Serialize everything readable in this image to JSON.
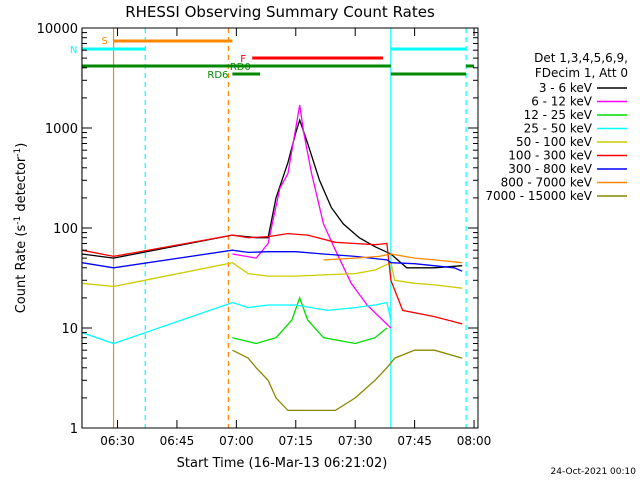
{
  "chart_data": {
    "type": "line",
    "title": "RHESSI Observing Summary Count Rates",
    "xlabel": "Start Time (16-Mar-13 06:21:02)",
    "ylabel_main": "Count Rate (s",
    "ylabel_sup1": "-1",
    "ylabel_mid": " detector",
    "ylabel_sup2": "-1",
    "ylabel_end": ")",
    "y_scale": "log",
    "ylim": [
      1,
      10000
    ],
    "xlim": [
      "06:21:02",
      "08:01"
    ],
    "x_ticks": [
      "06:30",
      "06:45",
      "07:00",
      "07:15",
      "07:30",
      "07:45",
      "08:00"
    ],
    "y_ticks": [
      "1",
      "10",
      "100",
      "1000",
      "10000"
    ],
    "legend_header": [
      "Det 1,3,4,5,6,9,",
      "FDecim 1, Att 0"
    ],
    "footer_date": "24-Oct-2021 00:10",
    "series": [
      {
        "name": "3 - 6 keV",
        "color": "#000000",
        "points": [
          [
            "06:21",
            55
          ],
          [
            "06:29",
            50
          ],
          [
            "06:59",
            85
          ],
          [
            "07:05",
            80
          ],
          [
            "07:08",
            80
          ],
          [
            "07:10",
            200
          ],
          [
            "07:13",
            450
          ],
          [
            "07:15",
            900
          ],
          [
            "07:16",
            1200
          ],
          [
            "07:18",
            700
          ],
          [
            "07:21",
            300
          ],
          [
            "07:24",
            160
          ],
          [
            "07:27",
            110
          ],
          [
            "07:31",
            80
          ],
          [
            "07:35",
            65
          ],
          [
            "07:39",
            55
          ],
          [
            "07:43",
            40
          ],
          [
            "07:50",
            40
          ],
          [
            "07:57",
            42
          ]
        ]
      },
      {
        "name": "6 - 12 keV",
        "color": "#ff00ff",
        "points": [
          [
            "06:59",
            55
          ],
          [
            "07:05",
            50
          ],
          [
            "07:08",
            70
          ],
          [
            "07:11",
            250
          ],
          [
            "07:13",
            350
          ],
          [
            "07:15",
            1000
          ],
          [
            "07:16",
            1700
          ],
          [
            "07:17",
            900
          ],
          [
            "07:19",
            350
          ],
          [
            "07:22",
            110
          ],
          [
            "07:25",
            60
          ],
          [
            "07:29",
            28
          ],
          [
            "07:33",
            17
          ],
          [
            "07:36",
            13
          ],
          [
            "07:39",
            10
          ]
        ]
      },
      {
        "name": "12 - 25 keV",
        "color": "#00dd00",
        "points": [
          [
            "06:59",
            8
          ],
          [
            "07:05",
            7
          ],
          [
            "07:10",
            8
          ],
          [
            "07:14",
            12
          ],
          [
            "07:16",
            20
          ],
          [
            "07:18",
            12
          ],
          [
            "07:22",
            8
          ],
          [
            "07:30",
            7
          ],
          [
            "07:35",
            8
          ],
          [
            "07:38",
            10
          ]
        ]
      },
      {
        "name": "25 - 50 keV",
        "color": "#00ffff",
        "points": [
          [
            "06:21",
            9
          ],
          [
            "06:29",
            7
          ],
          [
            "06:59",
            18
          ],
          [
            "07:03",
            16
          ],
          [
            "07:08",
            17
          ],
          [
            "07:15",
            17
          ],
          [
            "07:23",
            15
          ],
          [
            "07:30",
            16
          ],
          [
            "07:35",
            17
          ],
          [
            "07:38",
            18
          ],
          [
            "07:39",
            12
          ]
        ]
      },
      {
        "name": "50 - 100 keV",
        "color": "#cccc00",
        "points": [
          [
            "06:21",
            28
          ],
          [
            "06:29",
            26
          ],
          [
            "06:59",
            45
          ],
          [
            "07:03",
            35
          ],
          [
            "07:08",
            33
          ],
          [
            "07:15",
            33
          ],
          [
            "07:22",
            34
          ],
          [
            "07:30",
            35
          ],
          [
            "07:35",
            38
          ],
          [
            "07:39",
            45
          ],
          [
            "07:40",
            30
          ],
          [
            "07:45",
            28
          ],
          [
            "07:50",
            27
          ],
          [
            "07:57",
            25
          ]
        ]
      },
      {
        "name": "100 - 300 keV",
        "color": "#ff0000",
        "points": [
          [
            "06:21",
            60
          ],
          [
            "06:29",
            52
          ],
          [
            "06:59",
            85
          ],
          [
            "07:03",
            80
          ],
          [
            "07:08",
            82
          ],
          [
            "07:13",
            88
          ],
          [
            "07:18",
            85
          ],
          [
            "07:25",
            72
          ],
          [
            "07:30",
            70
          ],
          [
            "07:35",
            68
          ],
          [
            "07:38",
            70
          ],
          [
            "07:39",
            30
          ],
          [
            "07:42",
            15
          ],
          [
            "07:50",
            13
          ],
          [
            "07:57",
            11
          ]
        ]
      },
      {
        "name": "300 - 800 keV",
        "color": "#0000ff",
        "points": [
          [
            "06:21",
            45
          ],
          [
            "06:29",
            40
          ],
          [
            "06:59",
            60
          ],
          [
            "07:03",
            57
          ],
          [
            "07:08",
            58
          ],
          [
            "07:15",
            58
          ],
          [
            "07:22",
            55
          ],
          [
            "07:30",
            52
          ],
          [
            "07:38",
            48
          ],
          [
            "07:39",
            45
          ],
          [
            "07:45",
            44
          ],
          [
            "07:55",
            40
          ],
          [
            "07:57",
            37
          ]
        ]
      },
      {
        "name": "800 - 7000 keV",
        "color": "#ff8800",
        "points": [
          [
            "07:22",
            48
          ],
          [
            "07:30",
            50
          ],
          [
            "07:36",
            52
          ],
          [
            "07:39",
            55
          ],
          [
            "07:45",
            50
          ],
          [
            "07:50",
            48
          ],
          [
            "07:57",
            45
          ]
        ]
      },
      {
        "name": "7000 - 15000 keV",
        "color": "#888800",
        "points": [
          [
            "06:59",
            6
          ],
          [
            "07:03",
            5
          ],
          [
            "07:05",
            4
          ],
          [
            "07:08",
            3
          ],
          [
            "07:10",
            2
          ],
          [
            "07:13",
            1.5
          ],
          [
            "07:20",
            1.5
          ],
          [
            "07:25",
            1.5
          ],
          [
            "07:30",
            2
          ],
          [
            "07:35",
            3
          ],
          [
            "07:38",
            4
          ],
          [
            "07:40",
            5
          ],
          [
            "07:45",
            6
          ],
          [
            "07:50",
            6
          ],
          [
            "07:57",
            5
          ]
        ]
      }
    ],
    "state_bars": [
      {
        "label": "S",
        "color": "#ff8800",
        "start": "06:29",
        "end": "06:59",
        "level": 0
      },
      {
        "label": "N",
        "color": "#00ffff",
        "start": "06:21",
        "end": "06:37",
        "level": 1
      },
      {
        "label": "",
        "color": "#00ffff",
        "start": "07:39",
        "end": "07:58",
        "level": 1
      },
      {
        "label": "F",
        "color": "#ff0000",
        "start": "07:04",
        "end": "07:37",
        "level": 2
      },
      {
        "label": "RD0",
        "color": "#008800",
        "start": "06:21",
        "end": "07:39",
        "level": 3
      },
      {
        "label": "",
        "color": "#008800",
        "start": "07:58",
        "end": "08:00",
        "level": 3
      },
      {
        "label": "RD6",
        "color": "#008800",
        "start": "06:59",
        "end": "07:06",
        "level": 4
      },
      {
        "label": "",
        "color": "#008800",
        "start": "07:39",
        "end": "07:58",
        "level": 4
      }
    ],
    "vlines": [
      {
        "time": "06:29",
        "color": "#ff8800",
        "style": "solid"
      },
      {
        "time": "06:37",
        "color": "#00ffff",
        "style": "dashed"
      },
      {
        "time": "06:58",
        "color": "#ff8800",
        "style": "dashed"
      },
      {
        "time": "07:39",
        "color": "#00ffff",
        "style": "solid"
      },
      {
        "time": "07:58",
        "color": "#00ffff",
        "style": "dashed"
      },
      {
        "time": "06:21",
        "color": "#00ffff",
        "style": "solid"
      }
    ]
  }
}
